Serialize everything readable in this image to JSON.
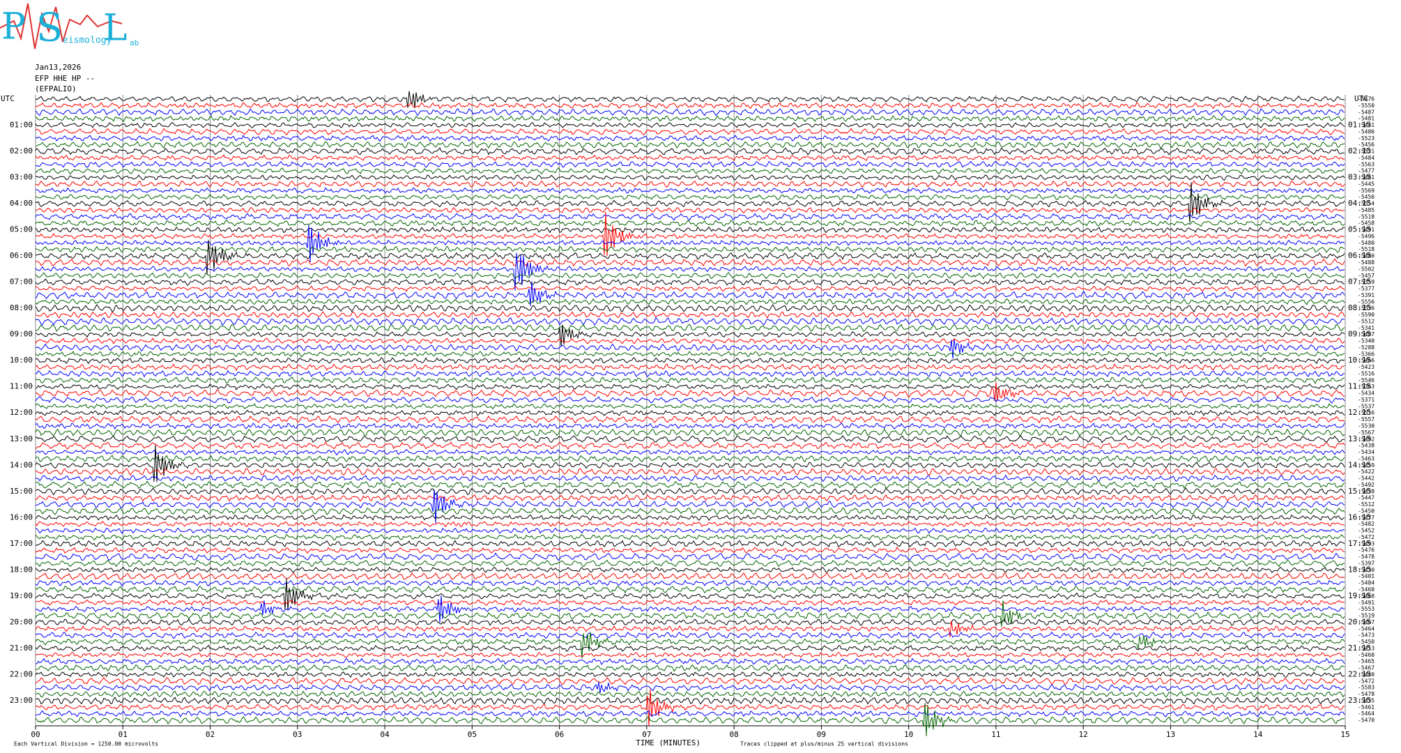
{
  "logo": {
    "p": "P",
    "s": "S",
    "l": "L",
    "small_1": "eismology",
    "small_2": "ab"
  },
  "header": {
    "date": "Jan13,2026",
    "station": "EFP HHE HP --",
    "name": "(EFPALIO)"
  },
  "chart_data": {
    "type": "helicorder",
    "left_axis_label": "UTC",
    "right_axis_label": "UTC",
    "left_row_labels": [
      "01:00",
      "02:00",
      "03:00",
      "04:00",
      "05:00",
      "06:00",
      "07:00",
      "08:00",
      "09:00",
      "10:00",
      "11:00",
      "12:00",
      "13:00",
      "14:00",
      "15:00",
      "16:00",
      "17:00",
      "18:00",
      "19:00",
      "20:00",
      "21:00",
      "22:00",
      "23:00"
    ],
    "right_row_labels": [
      "01:15",
      "02:15",
      "03:15",
      "04:15",
      "05:15",
      "06:15",
      "07:15",
      "08:15",
      "09:15",
      "10:15",
      "11:15",
      "12:15",
      "13:15",
      "14:15",
      "15:15",
      "16:15",
      "17:15",
      "18:15",
      "19:15",
      "20:15",
      "21:15",
      "22:15",
      "23:15"
    ],
    "trace_offsets": [
      -5476,
      -5550,
      -5487,
      -5481,
      -5441,
      -5486,
      -5523,
      -5456,
      -5521,
      -5484,
      -5563,
      -5477,
      -5481,
      -5445,
      -5569,
      -5456,
      -5554,
      -5485,
      -5518,
      -5458,
      -5491,
      -5496,
      -5480,
      -5518,
      -5480,
      -5488,
      -5502,
      -5457,
      -5359,
      -5377,
      -5391,
      -5556,
      -5536,
      -5590,
      -5512,
      -5341,
      -5487,
      -5340,
      -5288,
      -5366,
      -5466,
      -5423,
      -5516,
      -5546,
      -5363,
      -5434,
      -5371,
      -5537,
      -5516,
      -5557,
      -5530,
      -5567,
      -5492,
      -5438,
      -5434,
      -5463,
      -5459,
      -5422,
      -5442,
      -5492,
      -5438,
      -5447,
      -5512,
      -5450,
      -5477,
      -5482,
      -5452,
      -5472,
      -5493,
      -5476,
      -5478,
      -5397,
      -5430,
      -5401,
      -5484,
      -5460,
      -5468,
      -5491,
      -5553,
      -5519,
      -5467,
      -5464,
      -5473,
      -5450,
      -5413,
      -5460,
      -5465,
      -5467,
      -5440,
      -5472,
      -5583,
      -5478,
      -5435,
      -5461,
      -5464,
      -5470
    ],
    "trace_colors": [
      "#000000",
      "#ff0000",
      "#0000ff",
      "#006400"
    ],
    "xlim": [
      0,
      15
    ],
    "xticks": [
      {
        "value": 0,
        "label": "00"
      },
      {
        "value": 1,
        "label": "01"
      },
      {
        "value": 2,
        "label": "02"
      },
      {
        "value": 3,
        "label": "03"
      },
      {
        "value": 4,
        "label": "04"
      },
      {
        "value": 5,
        "label": "05"
      },
      {
        "value": 6,
        "label": "06"
      },
      {
        "value": 7,
        "label": "07"
      },
      {
        "value": 8,
        "label": "08"
      },
      {
        "value": 9,
        "label": "09"
      },
      {
        "value": 10,
        "label": "10"
      },
      {
        "value": 11,
        "label": "11"
      },
      {
        "value": 12,
        "label": "12"
      },
      {
        "value": 13,
        "label": "13"
      },
      {
        "value": 14,
        "label": "14"
      },
      {
        "value": 15,
        "label": "15"
      }
    ],
    "xlabel": "TIME (MINUTES)",
    "note_left": "Each Vertical Division = 1250.00 microvolts",
    "note_right": "Traces clipped at plus/minus 25 vertical divisions",
    "grid": true
  }
}
